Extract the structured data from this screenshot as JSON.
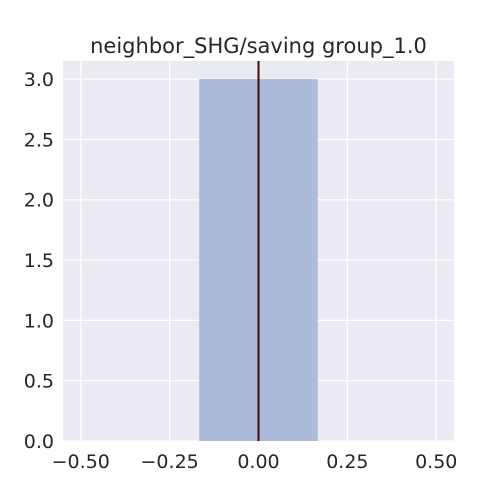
{
  "chart_data": {
    "type": "bar",
    "title": "neighbor_SHG/saving group_1.0",
    "xlabel": "",
    "ylabel": "",
    "xlim": [
      -0.55,
      0.55
    ],
    "ylim": [
      0,
      3.15
    ],
    "xticks": [
      -0.5,
      -0.25,
      0.0,
      0.25,
      0.5
    ],
    "xtick_labels": [
      "−0.50",
      "−0.25",
      "0.00",
      "0.25",
      "0.50"
    ],
    "yticks": [
      0,
      0.5,
      1.0,
      1.5,
      2.0,
      2.5,
      3.0
    ],
    "ytick_labels": [
      "0.0",
      "0.5",
      "1.0",
      "1.5",
      "2.0",
      "2.5",
      "3.0"
    ],
    "bars": [
      {
        "x_start": -0.1667,
        "x_end": 0.1667,
        "value": 3
      }
    ],
    "vertical_line": {
      "x": 0.0,
      "color": "#3b0a0a"
    },
    "grid": true,
    "colors": {
      "plot_background": "#eaeaf2",
      "bar": "#abbbd9",
      "grid": "#ffffff"
    }
  }
}
